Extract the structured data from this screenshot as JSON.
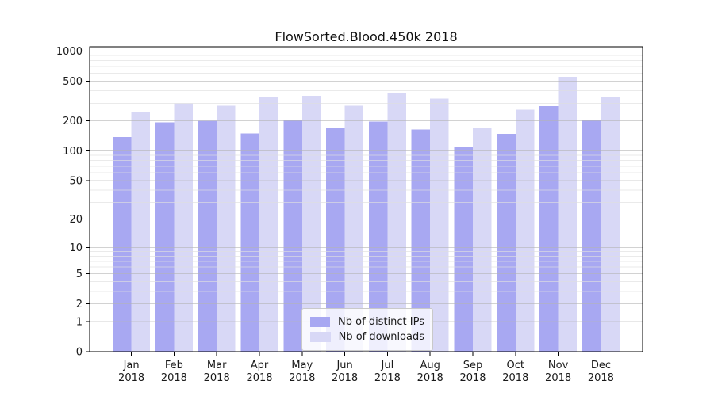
{
  "chart_data": {
    "type": "bar",
    "title": "FlowSorted.Blood.450k 2018",
    "scale": "log10(1+y)",
    "categories": [
      "Jan",
      "Feb",
      "Mar",
      "Apr",
      "May",
      "Jun",
      "Jul",
      "Aug",
      "Sep",
      "Oct",
      "Nov",
      "Dec"
    ],
    "category_year": "2018",
    "series": [
      {
        "name": "Nb of distinct IPs",
        "color": "#a8a8f2",
        "values": [
          138,
          193,
          201,
          149,
          206,
          169,
          197,
          164,
          111,
          148,
          280,
          203
        ]
      },
      {
        "name": "Nb of downloads",
        "color": "#d8d8f6",
        "values": [
          246,
          301,
          283,
          344,
          358,
          284,
          381,
          336,
          171,
          258,
          552,
          348
        ]
      }
    ],
    "ylim": [
      0,
      1000
    ],
    "y_ticks": [
      0,
      1,
      2,
      5,
      10,
      20,
      50,
      100,
      200,
      500,
      1000
    ],
    "minor_gridlines": [
      3,
      4,
      6,
      7,
      8,
      9,
      30,
      40,
      60,
      70,
      80,
      90,
      300,
      400,
      600,
      700,
      800,
      900
    ],
    "legend_position": "bottom-center-inside",
    "grid": "on",
    "colors": {
      "axis": "#000000",
      "tick_text": "#1a1a1a",
      "grid_major": "#b4b4b4",
      "grid_minor": "#dedede",
      "background": "#ffffff"
    }
  }
}
